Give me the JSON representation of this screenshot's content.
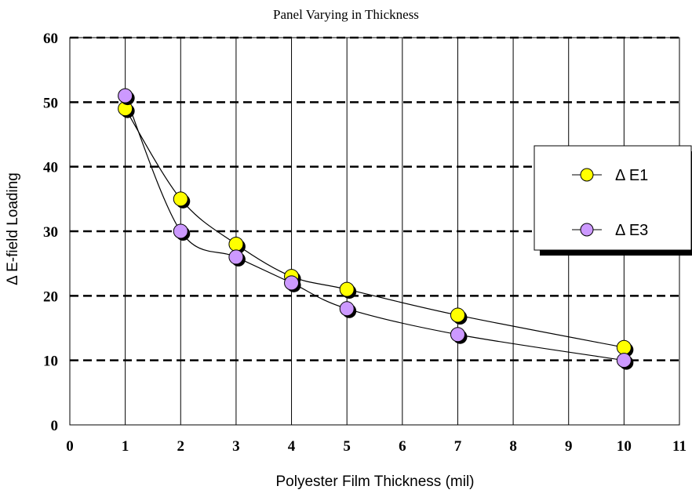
{
  "chart_data": {
    "type": "line",
    "title": "Panel Varying in Thickness",
    "xlabel": "Polyester Film Thickness (mil)",
    "ylabel": "Δ E-field Loading",
    "xlim": [
      0,
      11
    ],
    "ylim": [
      0,
      60
    ],
    "xticks": [
      "0",
      "1",
      "2",
      "3",
      "4",
      "5",
      "6",
      "7",
      "8",
      "9",
      "10",
      "11"
    ],
    "yticks": [
      "0",
      "10",
      "20",
      "30",
      "40",
      "50",
      "60"
    ],
    "grid": true,
    "legend_position": "right",
    "x": [
      1,
      2,
      3,
      4,
      5,
      7,
      10
    ],
    "series": [
      {
        "name": "Δ E1",
        "color": "#ffff00",
        "values": [
          49,
          35,
          28,
          23,
          21,
          17,
          12
        ]
      },
      {
        "name": "Δ E3",
        "color": "#cc99ff",
        "values": [
          51,
          30,
          26,
          22,
          18,
          14,
          10
        ]
      }
    ]
  }
}
